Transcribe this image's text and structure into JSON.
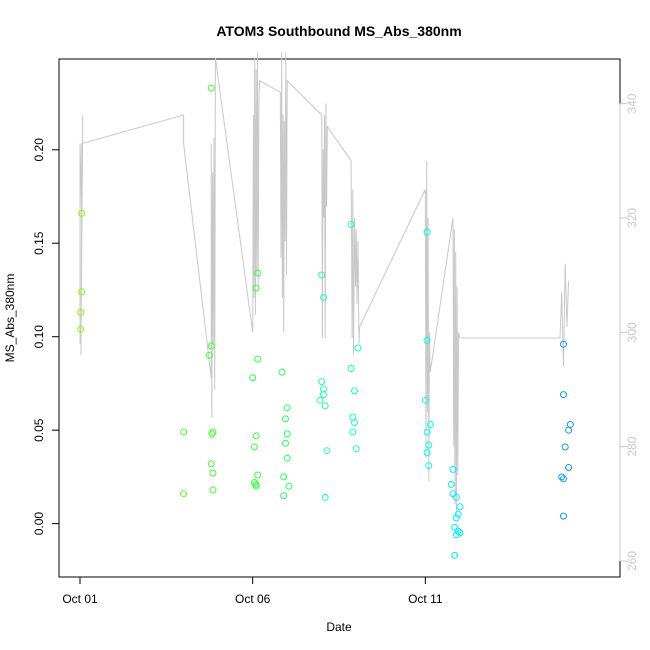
{
  "chart_data": {
    "type": "scatter",
    "title": "ATOM3 Southbound MS_Abs_380nm",
    "xlabel": "Date",
    "ylabel": "MS_Abs_380nm",
    "x_ticks": [
      "Oct 01",
      "Oct 06",
      "Oct 11"
    ],
    "xlim": [
      0,
      15
    ],
    "ylim": [
      -0.02,
      0.24
    ],
    "y_ticks": [
      0.0,
      0.05,
      0.1,
      0.15,
      0.2
    ],
    "y_tick_labels": [
      "0.00",
      "0.05",
      "0.10",
      "0.15",
      "0.20"
    ],
    "y2lim": [
      260,
      345
    ],
    "y2_ticks": [
      260,
      280,
      300,
      320,
      340
    ],
    "y2_tick_labels": [
      "260",
      "280",
      "300",
      "320",
      "340"
    ],
    "grid": false,
    "legend": "none",
    "points": [
      {
        "x": 0.05,
        "y": 0.166,
        "color": "#7fff00"
      },
      {
        "x": 0.05,
        "y": 0.124,
        "color": "#7fff00"
      },
      {
        "x": 0.02,
        "y": 0.113,
        "color": "#7fff00"
      },
      {
        "x": 0.02,
        "y": 0.104,
        "color": "#7fff00"
      },
      {
        "x": 3.0,
        "y": 0.049,
        "color": "#55ff22"
      },
      {
        "x": 3.0,
        "y": 0.016,
        "color": "#55ff22"
      },
      {
        "x": 3.8,
        "y": 0.233,
        "color": "#44ff33"
      },
      {
        "x": 3.8,
        "y": 0.095,
        "color": "#44ff33"
      },
      {
        "x": 3.75,
        "y": 0.09,
        "color": "#44ff33"
      },
      {
        "x": 3.85,
        "y": 0.049,
        "color": "#44ff33"
      },
      {
        "x": 3.82,
        "y": 0.048,
        "color": "#44ff33"
      },
      {
        "x": 3.8,
        "y": 0.032,
        "color": "#44ff33"
      },
      {
        "x": 3.85,
        "y": 0.027,
        "color": "#44ff33"
      },
      {
        "x": 3.85,
        "y": 0.018,
        "color": "#44ff33"
      },
      {
        "x": 5.15,
        "y": 0.134,
        "color": "#33ff44"
      },
      {
        "x": 5.1,
        "y": 0.126,
        "color": "#33ff44"
      },
      {
        "x": 5.15,
        "y": 0.088,
        "color": "#33ff44"
      },
      {
        "x": 5.0,
        "y": 0.078,
        "color": "#33ff44"
      },
      {
        "x": 5.1,
        "y": 0.047,
        "color": "#33ff44"
      },
      {
        "x": 5.05,
        "y": 0.041,
        "color": "#33ff44"
      },
      {
        "x": 5.15,
        "y": 0.026,
        "color": "#33ff44"
      },
      {
        "x": 5.05,
        "y": 0.022,
        "color": "#33ff44"
      },
      {
        "x": 5.1,
        "y": 0.021,
        "color": "#33ff44"
      },
      {
        "x": 5.1,
        "y": 0.02,
        "color": "#33ff44"
      },
      {
        "x": 5.85,
        "y": 0.081,
        "color": "#22ff55"
      },
      {
        "x": 6.0,
        "y": 0.062,
        "color": "#22ff55"
      },
      {
        "x": 5.95,
        "y": 0.056,
        "color": "#22ff55"
      },
      {
        "x": 6.0,
        "y": 0.048,
        "color": "#22ff55"
      },
      {
        "x": 5.95,
        "y": 0.043,
        "color": "#22ff55"
      },
      {
        "x": 6.0,
        "y": 0.035,
        "color": "#22ff55"
      },
      {
        "x": 5.9,
        "y": 0.025,
        "color": "#22ff55"
      },
      {
        "x": 6.05,
        "y": 0.02,
        "color": "#22ff55"
      },
      {
        "x": 5.9,
        "y": 0.015,
        "color": "#22ff55"
      },
      {
        "x": 7.0,
        "y": 0.133,
        "color": "#22ffaa"
      },
      {
        "x": 7.05,
        "y": 0.121,
        "color": "#22ffaa"
      },
      {
        "x": 7.0,
        "y": 0.076,
        "color": "#22ffaa"
      },
      {
        "x": 7.05,
        "y": 0.072,
        "color": "#22ffaa"
      },
      {
        "x": 7.05,
        "y": 0.069,
        "color": "#22ffaa"
      },
      {
        "x": 6.95,
        "y": 0.066,
        "color": "#22ffaa"
      },
      {
        "x": 7.1,
        "y": 0.063,
        "color": "#22ffaa"
      },
      {
        "x": 7.15,
        "y": 0.039,
        "color": "#22ffaa"
      },
      {
        "x": 7.1,
        "y": 0.014,
        "color": "#22ffaa"
      },
      {
        "x": 7.85,
        "y": 0.16,
        "color": "#11ffcc"
      },
      {
        "x": 8.05,
        "y": 0.094,
        "color": "#11ffcc"
      },
      {
        "x": 7.85,
        "y": 0.083,
        "color": "#11ffcc"
      },
      {
        "x": 7.95,
        "y": 0.071,
        "color": "#11ffcc"
      },
      {
        "x": 7.9,
        "y": 0.057,
        "color": "#11ffcc"
      },
      {
        "x": 7.95,
        "y": 0.054,
        "color": "#11ffcc"
      },
      {
        "x": 7.9,
        "y": 0.049,
        "color": "#11ffcc"
      },
      {
        "x": 8.0,
        "y": 0.04,
        "color": "#11ffcc"
      },
      {
        "x": 10.05,
        "y": 0.156,
        "color": "#00ffee"
      },
      {
        "x": 10.05,
        "y": 0.098,
        "color": "#00ffee"
      },
      {
        "x": 10.0,
        "y": 0.066,
        "color": "#00ffee"
      },
      {
        "x": 10.15,
        "y": 0.053,
        "color": "#00ffee"
      },
      {
        "x": 10.05,
        "y": 0.049,
        "color": "#00ffee"
      },
      {
        "x": 10.1,
        "y": 0.042,
        "color": "#00ffee"
      },
      {
        "x": 10.05,
        "y": 0.038,
        "color": "#00ffee"
      },
      {
        "x": 10.1,
        "y": 0.031,
        "color": "#00ffee"
      },
      {
        "x": 10.8,
        "y": 0.029,
        "color": "#00eeff"
      },
      {
        "x": 10.75,
        "y": 0.021,
        "color": "#00eeff"
      },
      {
        "x": 10.8,
        "y": 0.016,
        "color": "#00eeff"
      },
      {
        "x": 10.9,
        "y": 0.014,
        "color": "#00eeff"
      },
      {
        "x": 11.0,
        "y": 0.009,
        "color": "#00eeff"
      },
      {
        "x": 10.95,
        "y": 0.005,
        "color": "#00eeff"
      },
      {
        "x": 10.9,
        "y": 0.003,
        "color": "#00eeff"
      },
      {
        "x": 10.85,
        "y": -0.002,
        "color": "#00eeff"
      },
      {
        "x": 10.9,
        "y": -0.006,
        "color": "#00eeff"
      },
      {
        "x": 11.0,
        "y": -0.005,
        "color": "#00eeff"
      },
      {
        "x": 10.95,
        "y": -0.004,
        "color": "#00eeff"
      },
      {
        "x": 10.85,
        "y": -0.017,
        "color": "#00eeff"
      },
      {
        "x": 14.0,
        "y": 0.096,
        "color": "#1199ee"
      },
      {
        "x": 14.0,
        "y": 0.069,
        "color": "#1199ee"
      },
      {
        "x": 14.2,
        "y": 0.053,
        "color": "#1199ee"
      },
      {
        "x": 14.15,
        "y": 0.05,
        "color": "#1199ee"
      },
      {
        "x": 14.05,
        "y": 0.041,
        "color": "#1199ee"
      },
      {
        "x": 14.15,
        "y": 0.03,
        "color": "#1199ee"
      },
      {
        "x": 13.95,
        "y": 0.025,
        "color": "#1199ee"
      },
      {
        "x": 14.0,
        "y": 0.024,
        "color": "#1199ee"
      },
      {
        "x": 14.0,
        "y": 0.004,
        "color": "#1199ee"
      }
    ],
    "secondary_line": {
      "color": "#c8c8c8",
      "x": [
        0.0,
        0.0,
        0.05,
        0.08,
        0.03,
        0.05,
        0.03,
        0.05,
        3.0,
        3.0,
        3.8,
        3.8,
        3.82,
        3.84,
        3.86,
        3.88,
        3.9,
        3.92,
        5.0,
        5.02,
        5.04,
        5.06,
        5.08,
        5.1,
        5.12,
        5.14,
        5.16,
        5.18,
        5.2,
        5.8,
        5.82,
        5.84,
        5.86,
        5.88,
        5.9,
        5.92,
        5.94,
        5.96,
        5.98,
        6.0,
        7.0,
        7.02,
        7.04,
        7.06,
        7.08,
        7.1,
        7.12,
        7.14,
        7.16,
        7.85,
        7.88,
        7.9,
        7.92,
        7.95,
        7.98,
        8.0,
        8.02,
        8.05,
        8.08,
        8.1,
        10.0,
        10.02,
        10.04,
        10.06,
        10.08,
        10.1,
        10.12,
        10.14,
        10.8,
        10.82,
        10.84,
        10.86,
        10.88,
        10.9,
        10.92,
        10.94,
        10.96,
        11.0,
        13.9,
        13.95,
        14.0,
        14.05,
        14.1,
        14.15
      ],
      "y2": [
        298.0,
        333.0,
        320.0,
        338.0,
        299.0,
        325.0,
        296.0,
        333.0,
        338.0,
        333.0,
        292.0,
        333.0,
        285.0,
        328.0,
        298.0,
        334.0,
        290.0,
        348.0,
        300.0,
        338.0,
        306.0,
        348.0,
        303.0,
        346.0,
        310.0,
        349.0,
        308.0,
        340.0,
        344.0,
        342.0,
        313.0,
        349.0,
        306.0,
        338.0,
        300.0,
        337.0,
        316.0,
        349.0,
        310.0,
        344.0,
        338.0,
        299.0,
        332.0,
        320.0,
        338.0,
        299.0,
        340.0,
        322.0,
        336.0,
        330.0,
        299.0,
        325.0,
        296.0,
        320.0,
        308.0,
        318.0,
        305.0,
        316.0,
        298.0,
        301.0,
        325.0,
        278.0,
        330.0,
        286.0,
        320.0,
        274.0,
        300.0,
        293.0,
        320.0,
        280.0,
        318.0,
        270.0,
        314.0,
        268.0,
        308.0,
        275.0,
        300.0,
        299.0,
        299.0,
        307.0,
        294.0,
        312.0,
        301.0,
        309.0
      ]
    }
  }
}
